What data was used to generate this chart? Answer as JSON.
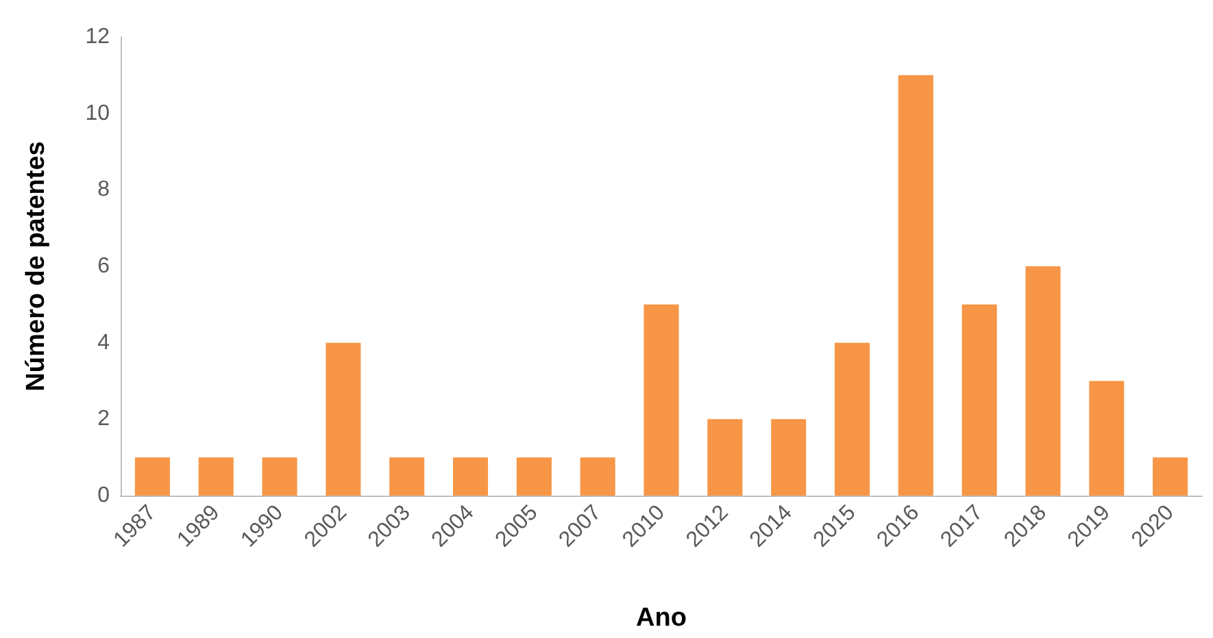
{
  "chart_data": {
    "type": "bar",
    "xlabel": "Ano",
    "ylabel": "Número de patentes",
    "categories": [
      "1987",
      "1989",
      "1990",
      "2002",
      "2003",
      "2004",
      "2005",
      "2007",
      "2010",
      "2012",
      "2014",
      "2015",
      "2016",
      "2017",
      "2018",
      "2019",
      "2020"
    ],
    "values": [
      1,
      1,
      1,
      4,
      1,
      1,
      1,
      1,
      5,
      2,
      2,
      4,
      11,
      5,
      6,
      3,
      1
    ],
    "color": "#f79646",
    "ylim": [
      0,
      12
    ],
    "yticks": [
      0,
      2,
      4,
      6,
      8,
      10,
      12
    ],
    "grid": false
  }
}
